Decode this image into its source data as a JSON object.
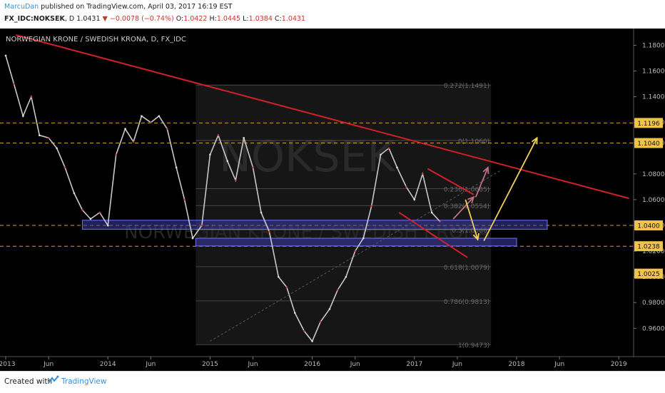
{
  "header": {
    "author": "MarcuDan",
    "published_text": "published on TradingView.com, April 03, 2017 16:19 EST",
    "symbol": "FX_IDC:NOKSEK",
    "interval": "D",
    "last": "1.0431",
    "change": "−0.0078 (−0.74%)",
    "o_label": "O:",
    "o_value": "1.0422",
    "h_label": "H:",
    "h_value": "1.0445",
    "l_label": "L:",
    "l_value": "1.0384",
    "c_label": "C:",
    "c_value": "1.0431"
  },
  "footer": {
    "created_with": "Created with",
    "brand": "TradingView"
  },
  "chart_data": {
    "type": "line",
    "title": "NORWEGIAN KRONE / SWEDISH KRONA, D, FX_IDC",
    "watermark_symbol": "NOKSEK",
    "watermark_name": "NORWEGIAN KRONE / SWEDISH KRONA",
    "x_ticks": [
      "2013",
      "Jun",
      "2014",
      "Jun",
      "2015",
      "Jun",
      "2016",
      "Jun",
      "2017",
      "Jun",
      "2018",
      "Jun",
      "2019"
    ],
    "y_ticks": [
      "1.1800",
      "1.1600",
      "1.1400",
      "1.1200",
      "1.1040",
      "1.0800",
      "1.0600",
      "1.0400",
      "1.0200",
      "1.0000",
      "0.9800",
      "0.9600"
    ],
    "ylim": [
      0.938,
      1.193
    ],
    "price_series": {
      "x": [
        2013.0,
        2013.08,
        2013.17,
        2013.25,
        2013.33,
        2013.42,
        2013.5,
        2013.58,
        2013.67,
        2013.75,
        2013.83,
        2013.92,
        2014.0,
        2014.08,
        2014.17,
        2014.25,
        2014.33,
        2014.42,
        2014.5,
        2014.58,
        2014.67,
        2014.75,
        2014.83,
        2014.92,
        2015.0,
        2015.08,
        2015.17,
        2015.25,
        2015.33,
        2015.42,
        2015.5,
        2015.58,
        2015.67,
        2015.75,
        2015.83,
        2015.92,
        2016.0,
        2016.08,
        2016.17,
        2016.25,
        2016.33,
        2016.42,
        2016.5,
        2016.58,
        2016.67,
        2016.75,
        2016.83,
        2016.92,
        2017.0,
        2017.08,
        2017.17,
        2017.25
      ],
      "y": [
        1.172,
        1.15,
        1.125,
        1.14,
        1.11,
        1.108,
        1.1,
        1.085,
        1.065,
        1.052,
        1.045,
        1.05,
        1.04,
        1.095,
        1.115,
        1.105,
        1.125,
        1.12,
        1.125,
        1.115,
        1.085,
        1.06,
        1.03,
        1.04,
        1.095,
        1.11,
        1.09,
        1.075,
        1.108,
        1.085,
        1.05,
        1.035,
        1.0,
        0.992,
        0.972,
        0.958,
        0.95,
        0.965,
        0.975,
        0.99,
        1.0,
        1.02,
        1.03,
        1.055,
        1.095,
        1.1,
        1.085,
        1.07,
        1.06,
        1.08,
        1.05,
        1.043
      ]
    },
    "fib_levels": [
      {
        "label": "0.272(1.1491)",
        "value": 1.1491
      },
      {
        "label": "0(1.1060)",
        "value": 1.106
      },
      {
        "label": "0.236(1.0685)",
        "value": 1.0685
      },
      {
        "label": "0.382(1.0554)",
        "value": 1.0554
      },
      {
        "label": "0.5(1.0366)",
        "value": 1.0366
      },
      {
        "label": "0.618(1.0079)",
        "value": 1.0079
      },
      {
        "label": "0.786(0.9813)",
        "value": 0.9813
      },
      {
        "label": "1(0.9473)",
        "value": 0.9473
      }
    ],
    "horizontal_levels": [
      1.1196,
      1.104,
      1.04,
      1.0238
    ],
    "price_tags": [
      {
        "text": "1.1196",
        "value": 1.1196
      },
      {
        "text": "1.1040",
        "value": 1.104
      },
      {
        "text": "1.0400",
        "value": 1.04
      },
      {
        "text": "1.0238",
        "value": 1.0238
      },
      {
        "text": "1.0025",
        "value": 1.0025
      }
    ],
    "zones": [
      {
        "x0": 2013.75,
        "x1": 2018.3,
        "y0": 1.037,
        "y1": 1.044
      },
      {
        "x0": 2014.86,
        "x1": 2018.0,
        "y0": 1.024,
        "y1": 1.03
      }
    ],
    "trendlines": [
      {
        "x0": 2013.1,
        "x1": 2019.1,
        "y0": 1.188,
        "y1": 1.061,
        "color": "#d0202a"
      },
      {
        "x0": 2017.13,
        "x1": 2017.58,
        "y0": 1.084,
        "y1": 1.064,
        "color": "#d0202a"
      },
      {
        "x0": 2016.85,
        "x1": 2017.52,
        "y0": 1.05,
        "y1": 1.015,
        "color": "#d0202a"
      }
    ],
    "arrows": [
      {
        "x0": 2017.38,
        "x1": 2017.58,
        "y0": 1.045,
        "y1": 1.062,
        "color": "#c07080"
      },
      {
        "x0": 2017.6,
        "x1": 2017.72,
        "y0": 1.062,
        "y1": 1.085,
        "color": "#c07080"
      },
      {
        "x0": 2017.5,
        "x1": 2017.62,
        "y0": 1.06,
        "y1": 1.029,
        "color": "#f2d060"
      },
      {
        "x0": 2017.68,
        "x1": 2018.2,
        "y0": 1.028,
        "y1": 1.108,
        "color": "#f2d060"
      }
    ]
  }
}
